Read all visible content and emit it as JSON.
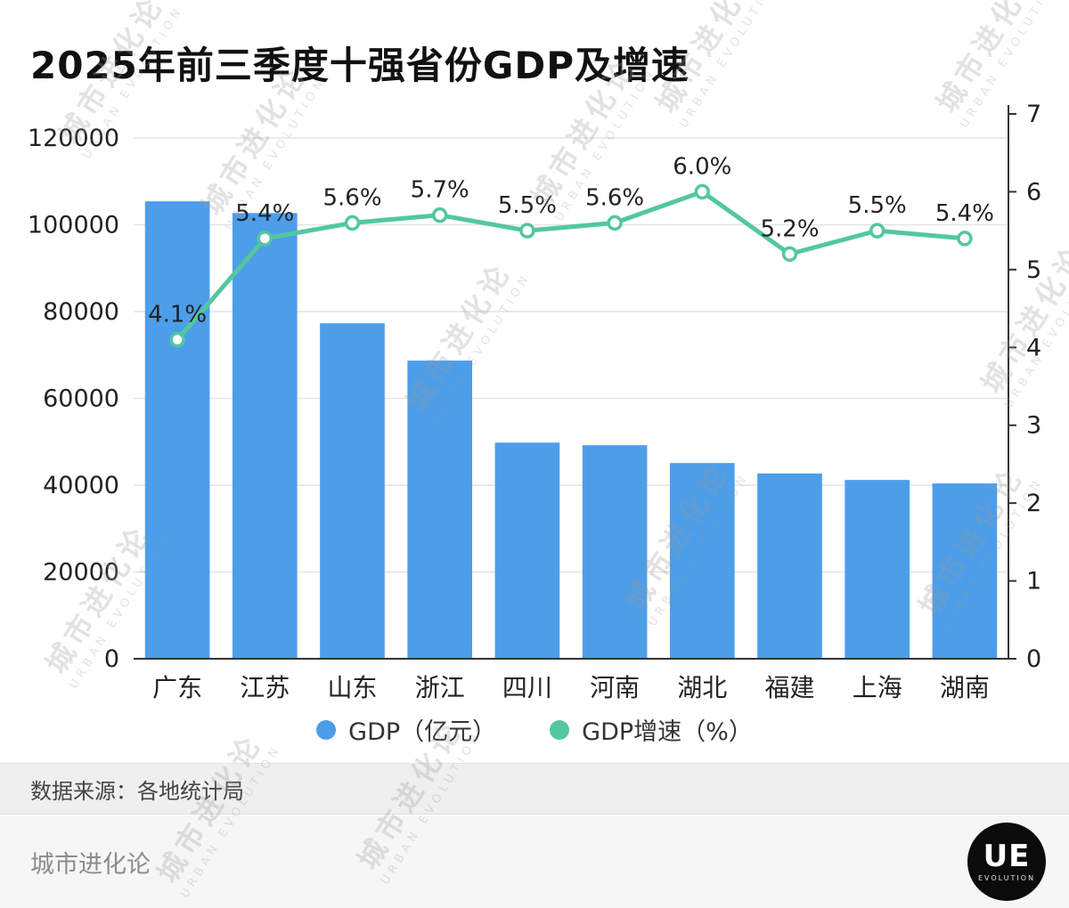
{
  "title": "2025年前三季度十强省份GDP及增速",
  "chart_data": {
    "type": "bar+line",
    "categories": [
      "广东",
      "江苏",
      "山东",
      "浙江",
      "四川",
      "河南",
      "湖北",
      "福建",
      "上海",
      "湖南"
    ],
    "series": [
      {
        "name": "GDP（亿元）",
        "type": "bar",
        "color": "#4d9ee9",
        "values": [
          105400,
          102700,
          77300,
          68700,
          49800,
          49200,
          45100,
          42700,
          41200,
          40400
        ]
      },
      {
        "name": "GDP增速（%）",
        "type": "line",
        "color": "#53c79f",
        "values": [
          4.1,
          5.4,
          5.6,
          5.7,
          5.5,
          5.6,
          6.0,
          5.2,
          5.5,
          5.4
        ],
        "labels": [
          "4.1%",
          "5.4%",
          "5.6%",
          "5.7%",
          "5.5%",
          "5.6%",
          "6.0%",
          "5.2%",
          "5.5%",
          "5.4%"
        ]
      }
    ],
    "left_axis": {
      "min": 0,
      "max": 120000,
      "ticks": [
        0,
        20000,
        40000,
        60000,
        80000,
        100000,
        120000
      ]
    },
    "right_axis": {
      "min": 0,
      "max": 7,
      "ticks": [
        0,
        1,
        2,
        3,
        4,
        5,
        6,
        7
      ]
    },
    "grid": true,
    "legend_position": "bottom"
  },
  "legend": [
    {
      "label": "GDP（亿元）",
      "color": "#4d9ee9"
    },
    {
      "label": "GDP增速（%）",
      "color": "#53c79f"
    }
  ],
  "source": "数据来源：各地统计局",
  "footer": {
    "brand": "城市进化论",
    "logo_text": "UE",
    "logo_sub": "EVOLUTION"
  },
  "watermark": {
    "line1": "城市进化论",
    "line2": "URBAN EVOLUTION"
  }
}
